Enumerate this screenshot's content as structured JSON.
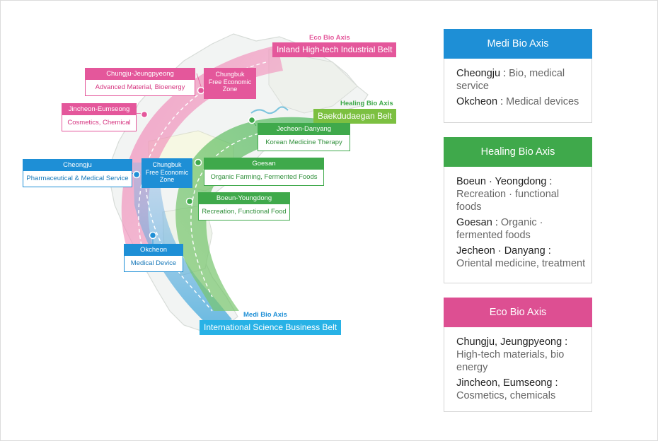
{
  "colors": {
    "eco": "#e4579b",
    "medi": "#1e8fd6",
    "healing": "#3fa94b",
    "belt_medi": "#28b2e6",
    "belt_healing": "#7cc041"
  },
  "belts": {
    "eco": {
      "axis": "Eco Bio Axis",
      "name": "Inland High-tech Industrial Belt"
    },
    "healing": {
      "axis": "Healing Bio Axis",
      "name": "Baekdudaegan Belt"
    },
    "medi": {
      "axis": "Medi Bio Axis",
      "name": "International Science Business Belt"
    }
  },
  "map_labels": {
    "chungju": {
      "title": "Chungju-Jeungpyeong",
      "detail": "Advanced Material, Bioenergy"
    },
    "jincheon": {
      "title": "Jincheon-Eumseong",
      "detail": "Cosmetics, Chemical"
    },
    "fez_north": {
      "line1": "Chungbuk",
      "line2": "Free Economic",
      "line3": "Zone"
    },
    "cheongju": {
      "title": "Cheongju",
      "detail": "Pharmaceutical & Medical Service"
    },
    "fez_south": {
      "line1": "Chungbuk",
      "line2": "Free Economic",
      "line3": "Zone"
    },
    "jecheon": {
      "title": "Jecheon-Danyang",
      "detail": "Korean Medicine Therapy"
    },
    "goesan": {
      "title": "Goesan",
      "detail": "Organic Farming, Fermented Foods"
    },
    "boeun": {
      "title": "Boeun-Youngdong",
      "detail": "Recreation, Functional Food"
    },
    "okcheon": {
      "title": "Okcheon",
      "detail": "Medical Device"
    }
  },
  "panels": {
    "medi": {
      "title": "Medi Bio Axis",
      "entries": [
        {
          "place": "Cheongju :",
          "desc": " Bio, medical service"
        },
        {
          "place": "Okcheon :",
          "desc": " Medical devices"
        }
      ]
    },
    "healing": {
      "title": "Healing Bio Axis",
      "entries": [
        {
          "place": "Boeun · Yeongdong :",
          "desc": " Recreation · functional foods"
        },
        {
          "place": "Goesan :",
          "desc": " Organic · fermented foods"
        },
        {
          "place": "Jecheon · Danyang :",
          "desc": " Oriental medicine, treatment"
        }
      ]
    },
    "eco": {
      "title": "Eco Bio Axis",
      "entries": [
        {
          "place": "Chungju, Jeungpyeong :",
          "desc": " High-tech materials, bio energy"
        },
        {
          "place": "Jincheon, Eumseong :",
          "desc": " Cosmetics, chemicals"
        }
      ]
    }
  }
}
